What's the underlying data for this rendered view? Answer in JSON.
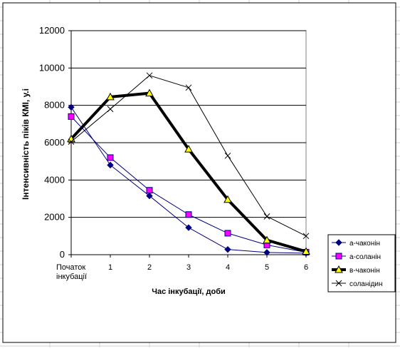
{
  "chart_data": {
    "type": "line",
    "title": "",
    "xlabel": "Час інкубації, доби",
    "ylabel": "Інтенсивність піків КМІ, у.і",
    "categories": [
      "Початок інкубації",
      "1",
      "2",
      "3",
      "4",
      "5",
      "6"
    ],
    "category_lines": [
      [
        "Початок",
        "інкубації"
      ],
      [
        "1"
      ],
      [
        "2"
      ],
      [
        "3"
      ],
      [
        "4"
      ],
      [
        "5"
      ],
      [
        "6"
      ]
    ],
    "ylim": [
      0,
      12000
    ],
    "yticks": [
      0,
      2000,
      4000,
      6000,
      8000,
      10000,
      12000
    ],
    "grid": "horizontal",
    "legend": "right",
    "series": [
      {
        "name": "a-чаконін",
        "values": [
          7900,
          4800,
          3150,
          1450,
          280,
          120,
          80
        ],
        "color": "#000080",
        "marker": "diamond",
        "width": 1
      },
      {
        "name": "a-соланін",
        "values": [
          7400,
          5200,
          3450,
          2150,
          1150,
          520,
          130
        ],
        "color": "#000080",
        "marker": "square",
        "markerFill": "#ff00ff",
        "width": 1
      },
      {
        "name": "в-чаконін",
        "values": [
          6200,
          8450,
          8650,
          5650,
          2950,
          780,
          170
        ],
        "color": "#000000",
        "marker": "triangle",
        "markerFill": "#ffff00",
        "width": 4
      },
      {
        "name": "соланідин",
        "values": [
          6050,
          7800,
          9600,
          8950,
          5300,
          2050,
          1000
        ],
        "color": "#000000",
        "marker": "x",
        "width": 1
      }
    ]
  }
}
